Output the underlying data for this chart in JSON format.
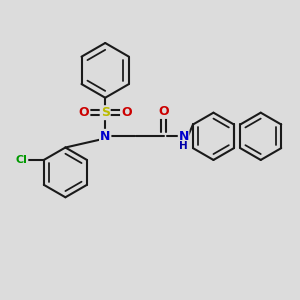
{
  "bg_color": "#dcdcdc",
  "bond_color": "#1a1a1a",
  "bond_width": 1.5,
  "atom_colors": {
    "N": "#0000cc",
    "O": "#cc0000",
    "S": "#bbbb00",
    "Cl": "#009900",
    "C": "#1a1a1a",
    "H": "#0000aa"
  },
  "figsize": [
    3.0,
    3.0
  ],
  "dpi": 100,
  "xlim": [
    0,
    12
  ],
  "ylim": [
    0,
    12
  ]
}
